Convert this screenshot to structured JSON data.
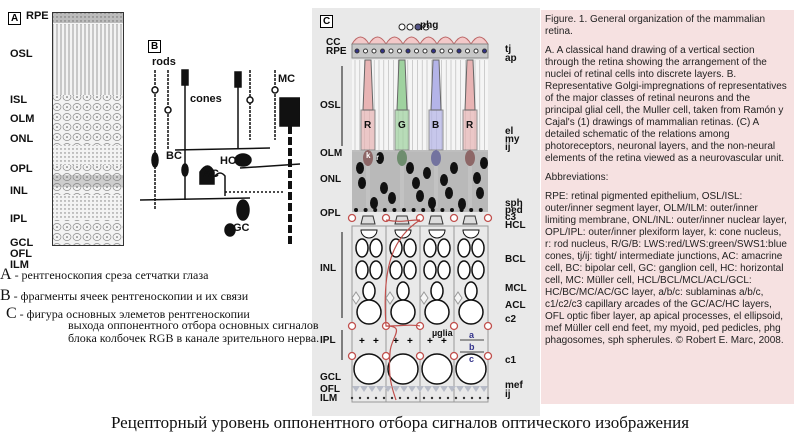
{
  "panel_a": {
    "tag": "A",
    "layers": [
      "RPE",
      "OSL",
      "ISL",
      "OLM",
      "ONL",
      "OPL",
      "INL",
      "IPL",
      "GCL",
      "OFL",
      "ILM"
    ]
  },
  "panel_b": {
    "tag": "B",
    "labels": {
      "rods": "rods",
      "cones": "cones",
      "mc": "MC",
      "bc": "BC",
      "hc": "HC",
      "ac": "AC",
      "gc": "GC"
    }
  },
  "panel_c": {
    "tag": "C",
    "top_label": "phg",
    "left_labels": [
      "CC",
      "RPE",
      "OSL",
      "OLM",
      "ONL",
      "OPL",
      "INL",
      "IPL",
      "GCL",
      "OFL",
      "ILM"
    ],
    "right_labels": [
      "tj",
      "ap",
      "el",
      "my",
      "ij",
      "sph",
      "ped",
      "c3",
      "HCL",
      "BCL",
      "MCL",
      "ACL",
      "c2",
      "c1",
      "mef",
      "ij"
    ],
    "cone_labels": [
      "R",
      "G",
      "B",
      "R"
    ],
    "nucleus_labels": [
      "k",
      "r"
    ],
    "microglia": "µglia",
    "sublaminas": [
      "a",
      "b",
      "c"
    ],
    "colors": {
      "red": "#e8b4b4",
      "green": "#2f7a2f",
      "blue": "#3a3aa8",
      "capillary": "#c0504d",
      "background": "#e9e9e9"
    }
  },
  "caption": {
    "title": "Figure. 1. General organization of the mammalian retina.",
    "body": "A. A classical hand drawing of a vertical section through the retina showing the arrangement of the nuclei of retinal cells into discrete layers. B. Representative Golgi-impregnations  of representatives of the major classes of retinal neurons and the principal glial cell, the Muller cell, taken from Ramón y Cajal's (1) drawings of mammalian retinas. (C) A detailed schematic of the relations among photoreceptors, neuronal layers, and the non-neural elements of the retina viewed as a neurovascular unit.",
    "abbr_title": "Abbreviations:",
    "abbr": "RPE:  retinal pigmented epithelium, OSL/ISL: outer/inner segment layer, OLM/ILM: outer/inner limiting membrane, ONL/INL: outer/inner nuclear layer, OPL/IPL: outer/inner plexiform layer,  k: cone nucleus, r: rod nucleus, R/G/B: LWS:red/LWS:green/SWS1:blue cones, tj/ij: tight/ intermediate junctions, AC: amacrine cell, BC: bipolar cell, GC: ganglion cell, HC: horizontal cell, MC: Müller cell, HCL/BCL/MCL/ACL/GCL: HC/BC/MC/AC/GC layer, a/b/c: sublaminas a/b/c, c1/c2/c3 capillary arcades of the GC/AC/HC layers, OFL optic fiber layer, ap apical processes, el ellipsoid, mef Müller cell end feet, my myoid, ped pedicles, phg phagosomes, sph spherules. © Robert E. Marc, 2008."
  },
  "notes": [
    {
      "letter": "A",
      "text": " - рентгеноскопия среза сетчатки  глаза"
    },
    {
      "letter": "B",
      "text": " - фрагменты ячеек рентгеноскопии и их связи"
    },
    {
      "letter": "C",
      "text": " - фигура основных элеметов рентгеноскопии"
    },
    {
      "letter": "",
      "text": "выхода оппонентного отбора основных сигналов"
    },
    {
      "letter": "",
      "text": "блока колбочек  RGB в канале зрительного нерва."
    }
  ],
  "bottom_title": "Рецепторный уровень оппонентного отбора сигналов оптического изображения"
}
